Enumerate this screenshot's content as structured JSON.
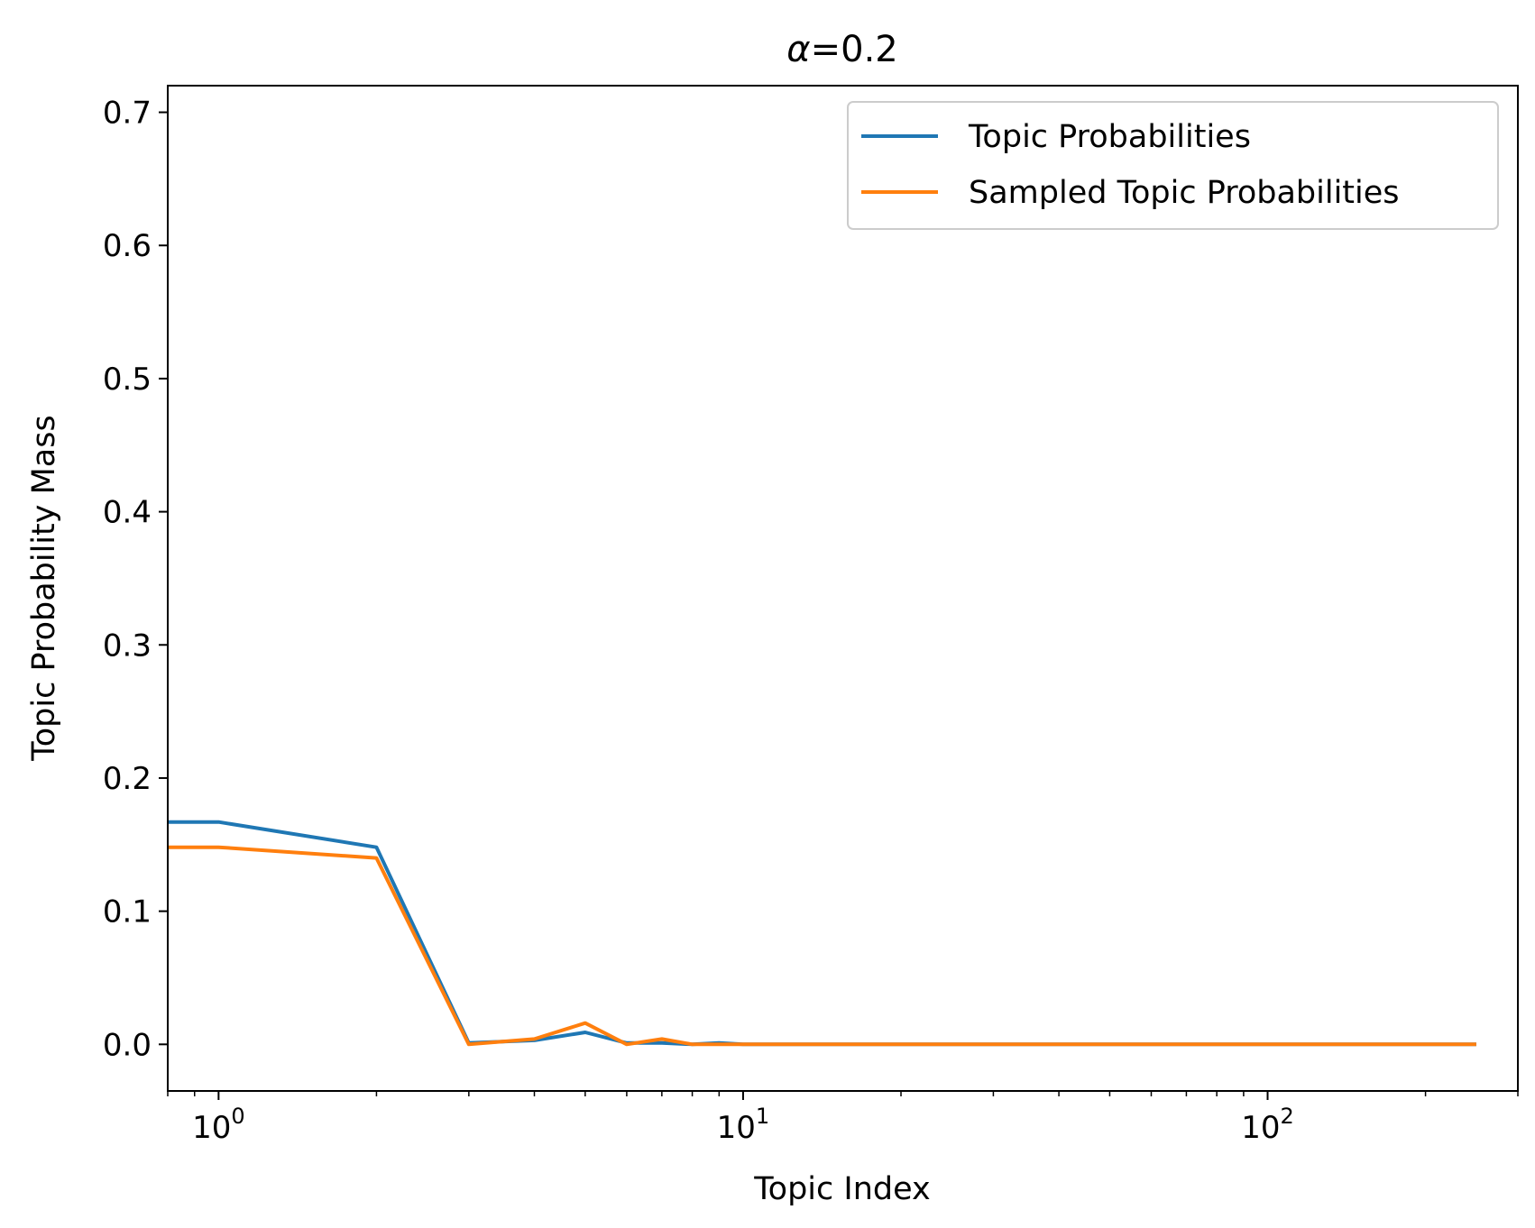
{
  "chart_data": {
    "type": "line",
    "title_prefix": "α",
    "title_suffix": "=0.2",
    "xlabel": "Topic Index",
    "ylabel": "Topic Probability Mass",
    "x_scale": "log",
    "xlim": [
      0.8,
      300
    ],
    "ylim": [
      -0.035,
      0.72
    ],
    "grid": false,
    "legend_position": "upper right",
    "y_ticks": [
      0.0,
      0.1,
      0.2,
      0.3,
      0.4,
      0.5,
      0.6,
      0.7
    ],
    "y_tick_labels": [
      "0.0",
      "0.1",
      "0.2",
      "0.3",
      "0.4",
      "0.5",
      "0.6",
      "0.7"
    ],
    "x_major_ticks": [
      1,
      10,
      100
    ],
    "x_tick_labels": [
      {
        "base": "10",
        "exp": "0"
      },
      {
        "base": "10",
        "exp": "1"
      },
      {
        "base": "10",
        "exp": "2"
      }
    ],
    "x_minor_ticks": [
      0.8,
      0.9,
      2,
      3,
      4,
      5,
      6,
      7,
      8,
      9,
      20,
      30,
      40,
      50,
      60,
      70,
      80,
      90,
      200,
      300
    ],
    "series": [
      {
        "name": "Topic Probabilities",
        "color": "#1f77b4",
        "x": [
          0.8,
          1,
          2,
          3,
          4,
          5,
          6,
          7,
          8,
          9,
          10,
          15,
          20,
          30,
          50,
          100,
          150,
          200,
          250
        ],
        "y": [
          0.167,
          0.167,
          0.148,
          0.001,
          0.003,
          0.009,
          0.001,
          0.001,
          0.0,
          0.001,
          0.0,
          0.0,
          0.0,
          0.0,
          0.0,
          0.0,
          0.0,
          0.0,
          0.0
        ]
      },
      {
        "name": "Sampled Topic Probabilities",
        "color": "#ff7f0e",
        "x": [
          0.8,
          1,
          2,
          3,
          4,
          5,
          6,
          7,
          8,
          9,
          10,
          15,
          20,
          30,
          50,
          100,
          150,
          200,
          250
        ],
        "y": [
          0.148,
          0.148,
          0.14,
          0.0,
          0.004,
          0.016,
          0.0,
          0.004,
          0.0,
          0.0,
          0.0,
          0.0,
          0.0,
          0.0,
          0.0,
          0.0,
          0.0,
          0.0,
          0.0
        ]
      }
    ]
  }
}
